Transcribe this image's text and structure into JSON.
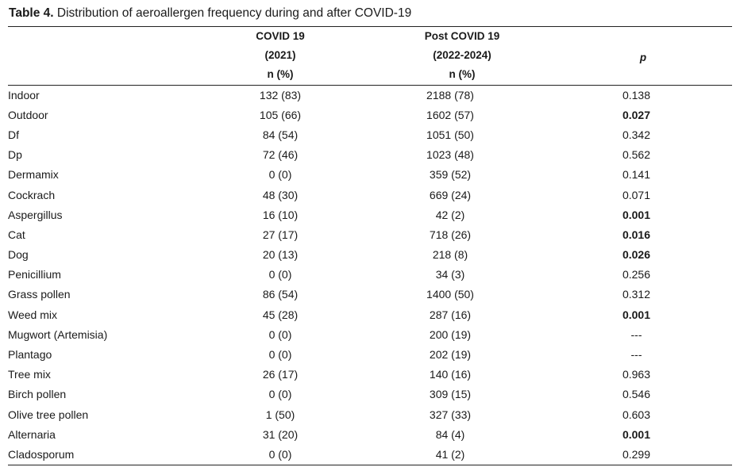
{
  "caption": {
    "label": "Table 4.",
    "text": " Distribution of aeroallergen frequency during and after COVID-19"
  },
  "headers": {
    "covid": [
      "COVID 19",
      "(2021)",
      "n (%)"
    ],
    "post": [
      "Post COVID 19",
      "(2022-2024)",
      "n (%)"
    ],
    "p": "p"
  },
  "rows": [
    {
      "name": "Indoor",
      "covid": "132 (83)",
      "post": "2188 (78)",
      "p": "0.138",
      "sig": false
    },
    {
      "name": "Outdoor",
      "covid": "105 (66)",
      "post": "1602 (57)",
      "p": "0.027",
      "sig": true
    },
    {
      "name": "Df",
      "covid": "84 (54)",
      "post": "1051 (50)",
      "p": "0.342",
      "sig": false
    },
    {
      "name": "Dp",
      "covid": "72 (46)",
      "post": "1023 (48)",
      "p": "0.562",
      "sig": false
    },
    {
      "name": "Dermamix",
      "covid": "0 (0)",
      "post": "359 (52)",
      "p": "0.141",
      "sig": false
    },
    {
      "name": "Cockrach",
      "covid": "48 (30)",
      "post": "669 (24)",
      "p": "0.071",
      "sig": false
    },
    {
      "name": "Aspergillus",
      "covid": "16 (10)",
      "post": "42 (2)",
      "p": "0.001",
      "sig": true
    },
    {
      "name": "Cat",
      "covid": "27 (17)",
      "post": "718 (26)",
      "p": "0.016",
      "sig": true
    },
    {
      "name": "Dog",
      "covid": "20 (13)",
      "post": "218 (8)",
      "p": "0.026",
      "sig": true
    },
    {
      "name": "Penicillium",
      "covid": "0 (0)",
      "post": "34 (3)",
      "p": "0.256",
      "sig": false
    },
    {
      "name": "Grass pollen",
      "covid": "86 (54)",
      "post": "1400 (50)",
      "p": "0.312",
      "sig": false
    },
    {
      "name": "Weed mix",
      "covid": "45 (28)",
      "post": "287 (16)",
      "p": "0.001",
      "sig": true
    },
    {
      "name": "Mugwort (Artemisia)",
      "covid": "0 (0)",
      "post": "200 (19)",
      "p": "---",
      "sig": false
    },
    {
      "name": "Plantago",
      "covid": "0 (0)",
      "post": "202 (19)",
      "p": "---",
      "sig": false
    },
    {
      "name": "Tree mix",
      "covid": "26 (17)",
      "post": "140 (16)",
      "p": "0.963",
      "sig": false
    },
    {
      "name": "Birch pollen",
      "covid": "0 (0)",
      "post": "309 (15)",
      "p": "0.546",
      "sig": false
    },
    {
      "name": "Olive tree pollen",
      "covid": "1 (50)",
      "post": "327 (33)",
      "p": "0.603",
      "sig": false
    },
    {
      "name": "Alternaria",
      "covid": "31 (20)",
      "post": "84 (4)",
      "p": "0.001",
      "sig": true
    },
    {
      "name": "Cladosporum",
      "covid": "0 (0)",
      "post": "41 (2)",
      "p": "0.299",
      "sig": false
    }
  ]
}
